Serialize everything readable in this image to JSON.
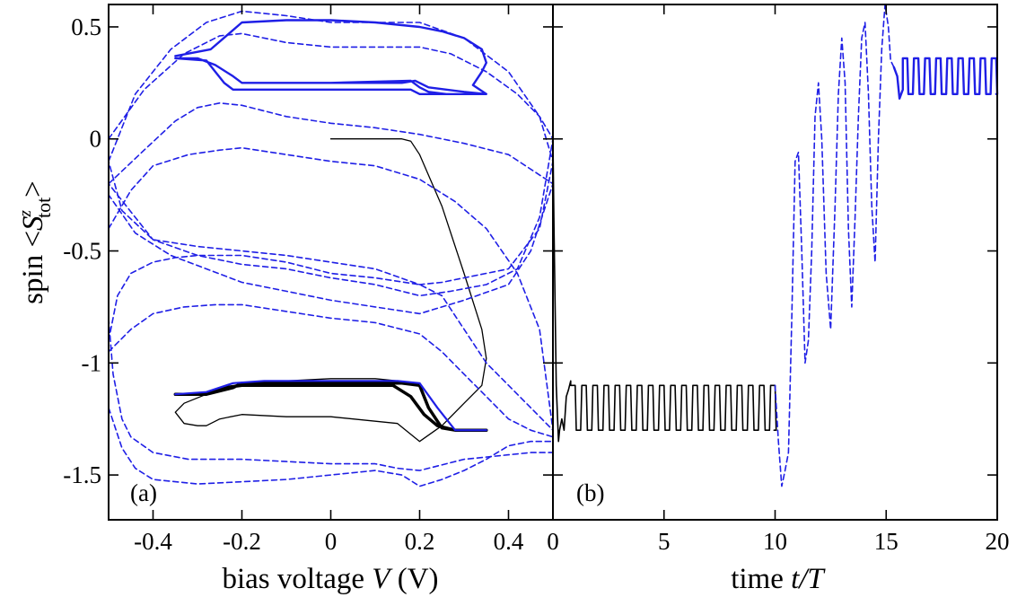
{
  "chart_data": [
    {
      "type": "line",
      "panel_label": "(a)",
      "xlabel": "bias voltage  V (V)",
      "xlabel_parts": {
        "prefix": "bias voltage  ",
        "var": "V",
        "suffix": " (V)"
      },
      "ylabel": "spin  <S^z_tot>",
      "ylabel_parts": {
        "prefix": "spin  <",
        "S": "S",
        "sup": "z",
        "sub": "tot",
        "suffix": ">"
      },
      "xlim": [
        -0.5,
        0.5
      ],
      "ylim": [
        -1.7,
        0.6
      ],
      "xticks": [
        -0.4,
        -0.2,
        0,
        0.2,
        0.4
      ],
      "xtick_labels": [
        "-0.4",
        "-0.2",
        "0",
        "0.2",
        "0.4"
      ],
      "yticks": [
        0.5,
        0,
        -0.5,
        -1,
        -1.5
      ],
      "ytick_labels": [
        "0.5",
        "0",
        "-0.5",
        "-1",
        "-1.5"
      ],
      "grid": false,
      "colors": {
        "black": "#000000",
        "blue": "#1f1fe6"
      },
      "series": [
        {
          "color": "#000000",
          "dash": "solid",
          "width": 1.3,
          "x": [
            0,
            0.16,
            0.18,
            0.2,
            0.25,
            0.3,
            0.34,
            0.35,
            0.34,
            0.3,
            0.25,
            0.2,
            0.15,
            0,
            -0.1,
            -0.2,
            -0.25,
            -0.28,
            -0.3,
            -0.33,
            -0.35,
            -0.33,
            -0.28,
            -0.2,
            0,
            0.1,
            0.15
          ],
          "y": [
            0,
            0,
            -0.01,
            -0.07,
            -0.3,
            -0.6,
            -0.85,
            -0.98,
            -1.1,
            -1.18,
            -1.28,
            -1.35,
            -1.27,
            -1.24,
            -1.24,
            -1.23,
            -1.25,
            -1.28,
            -1.28,
            -1.27,
            -1.22,
            -1.18,
            -1.14,
            -1.09,
            -1.07,
            -1.07,
            -1.08
          ]
        },
        {
          "color": "#000000",
          "dash": "solid",
          "width": 3.5,
          "x": [
            -0.35,
            -0.28,
            -0.22,
            -0.2,
            -0.1,
            0,
            0.1,
            0.16,
            0.2,
            0.22,
            0.25,
            0.28,
            0.35,
            0.28,
            0.24,
            0.21,
            0.18,
            0.14,
            0.1,
            0,
            -0.1,
            -0.2,
            -0.24,
            -0.28,
            -0.35
          ],
          "y": [
            -1.14,
            -1.14,
            -1.11,
            -1.09,
            -1.09,
            -1.09,
            -1.09,
            -1.09,
            -1.1,
            -1.2,
            -1.29,
            -1.3,
            -1.3,
            -1.3,
            -1.28,
            -1.23,
            -1.15,
            -1.1,
            -1.1,
            -1.1,
            -1.1,
            -1.1,
            -1.11,
            -1.14,
            -1.14
          ]
        },
        {
          "color": "#1f1fe6",
          "dash": "solid",
          "width": 2.2,
          "x": [
            -0.35,
            -0.28,
            -0.22,
            -0.15,
            -0.05,
            0.05,
            0.15,
            0.2,
            0.24,
            0.28,
            0.35
          ],
          "y": [
            -1.14,
            -1.13,
            -1.09,
            -1.08,
            -1.08,
            -1.08,
            -1.08,
            -1.09,
            -1.2,
            -1.3,
            -1.3
          ]
        },
        {
          "color": "#1f1fe6",
          "dash": "solid",
          "width": 2.4,
          "x": [
            -0.35,
            -0.28,
            -0.26,
            -0.24,
            -0.22,
            -0.2,
            0,
            0.18,
            0.2,
            0.22,
            0.26,
            0.3,
            0.35,
            0.3,
            0.22,
            0.19,
            0.16,
            0,
            -0.2,
            -0.22,
            -0.26,
            -0.3,
            -0.35,
            -0.3,
            -0.26,
            -0.22,
            -0.2,
            0,
            0.18,
            0.2,
            0.22,
            0.26,
            0.3,
            0.35,
            0.32,
            0.34,
            0.35,
            0.34,
            0.3,
            0.25,
            0.2,
            0.1,
            0,
            -0.1,
            -0.2,
            -0.27,
            -0.35
          ],
          "y": [
            0.36,
            0.35,
            0.3,
            0.25,
            0.22,
            0.22,
            0.22,
            0.22,
            0.2,
            0.2,
            0.2,
            0.2,
            0.2,
            0.21,
            0.23,
            0.26,
            0.25,
            0.25,
            0.25,
            0.28,
            0.33,
            0.36,
            0.36,
            0.36,
            0.33,
            0.28,
            0.25,
            0.25,
            0.26,
            0.23,
            0.21,
            0.2,
            0.2,
            0.2,
            0.24,
            0.3,
            0.34,
            0.4,
            0.45,
            0.48,
            0.5,
            0.52,
            0.53,
            0.53,
            0.52,
            0.4,
            0.37
          ]
        },
        {
          "color": "#1f1fe6",
          "dash": "dashed",
          "width": 1.6,
          "x": [
            -0.5,
            -0.44,
            -0.36,
            -0.28,
            -0.2,
            -0.1,
            0,
            0.1,
            0.2,
            0.3,
            0.4,
            0.47,
            0.5,
            0.47,
            0.4,
            0.3,
            0.25,
            0.2,
            0.1,
            0,
            -0.1,
            -0.2,
            -0.3,
            -0.4,
            -0.47,
            -0.5
          ],
          "y": [
            -0.1,
            0.2,
            0.4,
            0.52,
            0.57,
            0.55,
            0.52,
            0.52,
            0.52,
            0.45,
            0.3,
            0.1,
            -0.1,
            -0.4,
            -0.58,
            -0.62,
            -0.64,
            -0.65,
            -0.58,
            -0.55,
            -0.52,
            -0.5,
            -0.48,
            -0.45,
            -0.32,
            -0.1
          ]
        },
        {
          "color": "#1f1fe6",
          "dash": "dashed",
          "width": 1.6,
          "x": [
            -0.5,
            -0.42,
            -0.33,
            -0.25,
            -0.2,
            -0.1,
            0,
            0.1,
            0.2,
            0.27,
            0.35,
            0.42,
            0.47,
            0.5,
            0.47,
            0.42,
            0.35,
            0.27,
            0.2,
            0.1,
            0,
            -0.1,
            -0.2,
            -0.3,
            -0.4,
            -0.5
          ],
          "y": [
            0,
            0.22,
            0.38,
            0.46,
            0.47,
            0.43,
            0.41,
            0.41,
            0.41,
            0.38,
            0.3,
            0.2,
            0.1,
            0,
            -0.35,
            -0.58,
            -0.65,
            -0.68,
            -0.7,
            -0.65,
            -0.62,
            -0.58,
            -0.56,
            -0.52,
            -0.45,
            -0.2
          ]
        },
        {
          "color": "#1f1fe6",
          "dash": "dashed",
          "width": 1.6,
          "x": [
            -0.5,
            -0.42,
            -0.35,
            -0.3,
            -0.25,
            -0.2,
            -0.1,
            0,
            0.1,
            0.2,
            0.3,
            0.4,
            0.5,
            0.45,
            0.4,
            0.3,
            0.2,
            0.1,
            0,
            -0.1,
            -0.2,
            -0.28,
            -0.36,
            -0.44,
            -0.5
          ],
          "y": [
            -0.2,
            -0.05,
            0.08,
            0.14,
            0.16,
            0.15,
            0.1,
            0.07,
            0.05,
            0.02,
            -0.02,
            -0.07,
            -0.2,
            -0.5,
            -0.65,
            -0.72,
            -0.78,
            -0.75,
            -0.72,
            -0.68,
            -0.64,
            -0.58,
            -0.52,
            -0.42,
            -0.25
          ]
        },
        {
          "color": "#1f1fe6",
          "dash": "dashed",
          "width": 1.6,
          "x": [
            -0.5,
            -0.45,
            -0.4,
            -0.32,
            -0.25,
            -0.2,
            -0.1,
            0,
            0.1,
            0.2,
            0.28,
            0.35,
            0.42,
            0.47,
            0.5
          ],
          "y": [
            -0.4,
            -0.23,
            -0.12,
            -0.07,
            -0.05,
            -0.04,
            -0.07,
            -0.1,
            -0.12,
            -0.18,
            -0.28,
            -0.4,
            -0.6,
            -0.85,
            -1.3
          ]
        },
        {
          "color": "#1f1fe6",
          "dash": "dashed",
          "width": 1.6,
          "x": [
            -0.5,
            -0.48,
            -0.45,
            -0.4,
            -0.35,
            -0.3,
            -0.2,
            -0.1,
            0,
            0.1,
            0.2,
            0.25,
            0.35,
            0.45,
            0.5
          ],
          "y": [
            -0.9,
            -0.7,
            -0.6,
            -0.55,
            -0.53,
            -0.52,
            -0.52,
            -0.55,
            -0.6,
            -0.62,
            -0.65,
            -0.7,
            -1.0,
            -1.2,
            -1.3
          ]
        },
        {
          "color": "#1f1fe6",
          "dash": "dashed",
          "width": 1.6,
          "x": [
            -0.5,
            -0.45,
            -0.4,
            -0.33,
            -0.26,
            -0.2,
            -0.1,
            0,
            0.1,
            0.2,
            0.25,
            0.3,
            0.35,
            0.4,
            0.45,
            0.5
          ],
          "y": [
            -0.95,
            -0.85,
            -0.78,
            -0.75,
            -0.74,
            -0.74,
            -0.77,
            -0.8,
            -0.82,
            -0.87,
            -0.95,
            -1.05,
            -1.15,
            -1.25,
            -1.3,
            -1.33
          ]
        },
        {
          "color": "#1f1fe6",
          "dash": "dashed",
          "width": 1.6,
          "x": [
            -0.5,
            -0.49,
            -0.47,
            -0.45,
            -0.4,
            -0.32,
            -0.25,
            -0.2,
            -0.1,
            0,
            0.1,
            0.15,
            0.2,
            0.3,
            0.4,
            0.45,
            0.5
          ],
          "y": [
            -0.8,
            -1.05,
            -1.25,
            -1.33,
            -1.4,
            -1.43,
            -1.43,
            -1.43,
            -1.44,
            -1.45,
            -1.45,
            -1.47,
            -1.48,
            -1.43,
            -1.41,
            -1.4,
            -1.4
          ]
        },
        {
          "color": "#1f1fe6",
          "dash": "dashed",
          "width": 1.6,
          "x": [
            -0.5,
            -0.47,
            -0.44,
            -0.4,
            -0.3,
            -0.2,
            -0.1,
            0,
            0.1,
            0.16,
            0.2,
            0.25,
            0.3,
            0.35,
            0.4,
            0.45,
            0.5
          ],
          "y": [
            -1.2,
            -1.38,
            -1.47,
            -1.52,
            -1.54,
            -1.53,
            -1.52,
            -1.5,
            -1.48,
            -1.5,
            -1.55,
            -1.52,
            -1.48,
            -1.43,
            -1.37,
            -1.35,
            -1.35
          ]
        }
      ]
    },
    {
      "type": "line",
      "panel_label": "(b)",
      "xlabel": "time  t/T",
      "xlabel_parts": {
        "prefix": "time  ",
        "var": "t/T"
      },
      "xlim": [
        0,
        20
      ],
      "ylim": [
        -1.7,
        0.6
      ],
      "xticks": [
        0,
        5,
        10,
        15,
        20
      ],
      "xtick_labels": [
        "0",
        "5",
        "10",
        "15",
        "20"
      ],
      "grid": false,
      "series": [
        {
          "color": "#000000",
          "dash": "solid",
          "width": 1.6,
          "kind": "square_wave",
          "lead": {
            "x": [
              0,
              0.05,
              0.15,
              0.25,
              0.3,
              0.4,
              0.5,
              0.6,
              0.7,
              0.8
            ],
            "y": [
              0,
              -0.4,
              -1.1,
              -1.35,
              -1.3,
              -1.25,
              -1.3,
              -1.15,
              -1.12,
              -1.08
            ]
          },
          "t_start": 0.8,
          "t_end": 10.0,
          "period": 0.5,
          "high": -1.1,
          "low": -1.3,
          "high_fraction": 0.5
        },
        {
          "color": "#1f1fe6",
          "dash": "dashed",
          "width": 1.6,
          "x": [
            10.0,
            10.15,
            10.3,
            10.45,
            10.6,
            10.75,
            10.9,
            11.05,
            11.2,
            11.35,
            11.5,
            11.65,
            11.8,
            11.95,
            12.1,
            12.3,
            12.5,
            12.7,
            12.85,
            13.0,
            13.15,
            13.3,
            13.45,
            13.6,
            13.75,
            13.9,
            14.05,
            14.2,
            14.35,
            14.5,
            14.65,
            14.8,
            14.95,
            15.1,
            15.2,
            15.35
          ],
          "y": [
            -1.1,
            -1.35,
            -1.55,
            -1.48,
            -1.4,
            -0.8,
            -0.1,
            -0.06,
            -0.5,
            -1.0,
            -0.9,
            -0.5,
            0.1,
            0.25,
            0.0,
            -0.6,
            -0.85,
            -0.3,
            0.2,
            0.45,
            0.25,
            -0.4,
            -0.75,
            -0.35,
            0.1,
            0.45,
            0.52,
            0.2,
            -0.3,
            -0.55,
            0.0,
            0.4,
            0.6,
            0.5,
            0.35,
            0.32
          ]
        },
        {
          "color": "#1f1fe6",
          "dash": "solid",
          "width": 2.4,
          "kind": "square_wave",
          "lead": {
            "x": [
              15.35,
              15.5,
              15.6,
              15.75
            ],
            "y": [
              0.32,
              0.28,
              0.18,
              0.22
            ]
          },
          "t_start": 15.75,
          "t_end": 20.0,
          "period": 0.5,
          "high": 0.36,
          "low": 0.2,
          "high_fraction": 0.5
        }
      ]
    }
  ]
}
